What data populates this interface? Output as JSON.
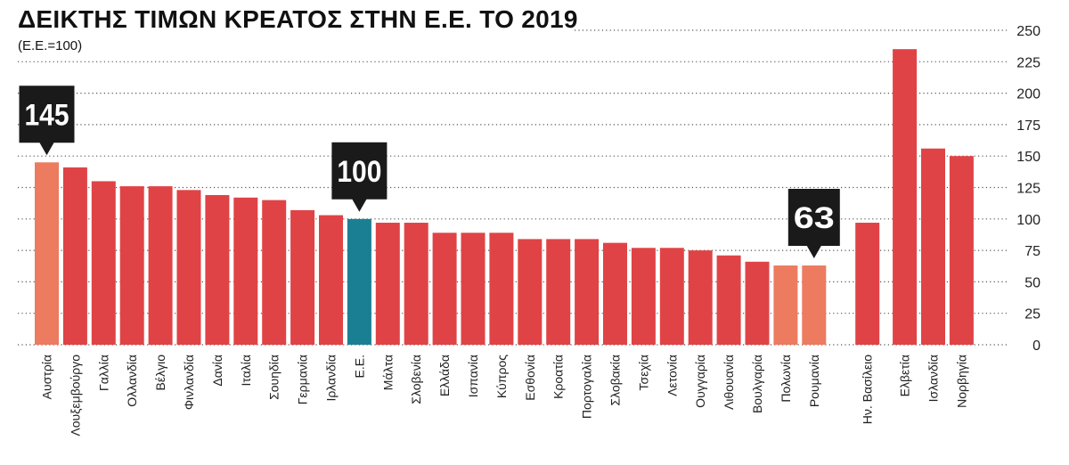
{
  "chart_data": {
    "type": "bar",
    "title": "ΔΕΙΚΤΗΣ ΤΙΜΩΝ ΚΡΕΑΤΟΣ ΣΤΗΝ Ε.Ε. ΤΟ 2019",
    "subtitle": "(Ε.Ε.=100)",
    "ylim": [
      0,
      250
    ],
    "yticks": [
      0,
      25,
      50,
      75,
      100,
      125,
      150,
      175,
      200,
      225,
      250
    ],
    "grid": true,
    "categories": [
      "Αυστρία",
      "Λουξεμβούργο",
      "Γαλλία",
      "Ολλανδία",
      "Βέλγιο",
      "Φινλανδία",
      "Δανία",
      "Ιταλία",
      "Σουηδία",
      "Γερμανία",
      "Ιρλανδία",
      "Ε.Ε.",
      "Μάλτα",
      "Σλοβενία",
      "Ελλάδα",
      "Ισπανία",
      "Κύπρος",
      "Εσθονία",
      "Κροατία",
      "Πορτογαλία",
      "Σλοβακία",
      "Τσεχία",
      "Λετονία",
      "Ουγγαρία",
      "Λιθουανία",
      "Βουλγαρία",
      "Πολωνία",
      "Ρουμανία",
      "Ην. Βασίλειο",
      "Ελβετία",
      "Ισλανδία",
      "Νορβηγία"
    ],
    "values": [
      145,
      141,
      130,
      126,
      126,
      123,
      119,
      117,
      115,
      107,
      103,
      100,
      97,
      97,
      89,
      89,
      89,
      84,
      84,
      84,
      81,
      77,
      77,
      75,
      71,
      66,
      63,
      63,
      97,
      235,
      156,
      150
    ],
    "groups": [
      0,
      0,
      0,
      0,
      0,
      0,
      0,
      0,
      0,
      0,
      0,
      0,
      0,
      0,
      0,
      0,
      0,
      0,
      0,
      0,
      0,
      0,
      0,
      0,
      0,
      0,
      0,
      0,
      1,
      2,
      2,
      2
    ],
    "bar_colors": [
      "#ec7b60",
      "#e04346",
      "#e04346",
      "#e04346",
      "#e04346",
      "#e04346",
      "#e04346",
      "#e04346",
      "#e04346",
      "#e04346",
      "#e04346",
      "#1b7f93",
      "#e04346",
      "#e04346",
      "#e04346",
      "#e04346",
      "#e04346",
      "#e04346",
      "#e04346",
      "#e04346",
      "#e04346",
      "#e04346",
      "#e04346",
      "#e04346",
      "#e04346",
      "#e04346",
      "#ec7b60",
      "#ec7b60",
      "#e04346",
      "#e04346",
      "#e04346",
      "#e04346"
    ],
    "callouts": [
      {
        "label": "145",
        "category_index": 0
      },
      {
        "label": "100",
        "category_index": 11
      },
      {
        "label": "63",
        "category_index": 27
      }
    ],
    "callout_color": "#1a1a1a",
    "grid_color": "#555555"
  }
}
